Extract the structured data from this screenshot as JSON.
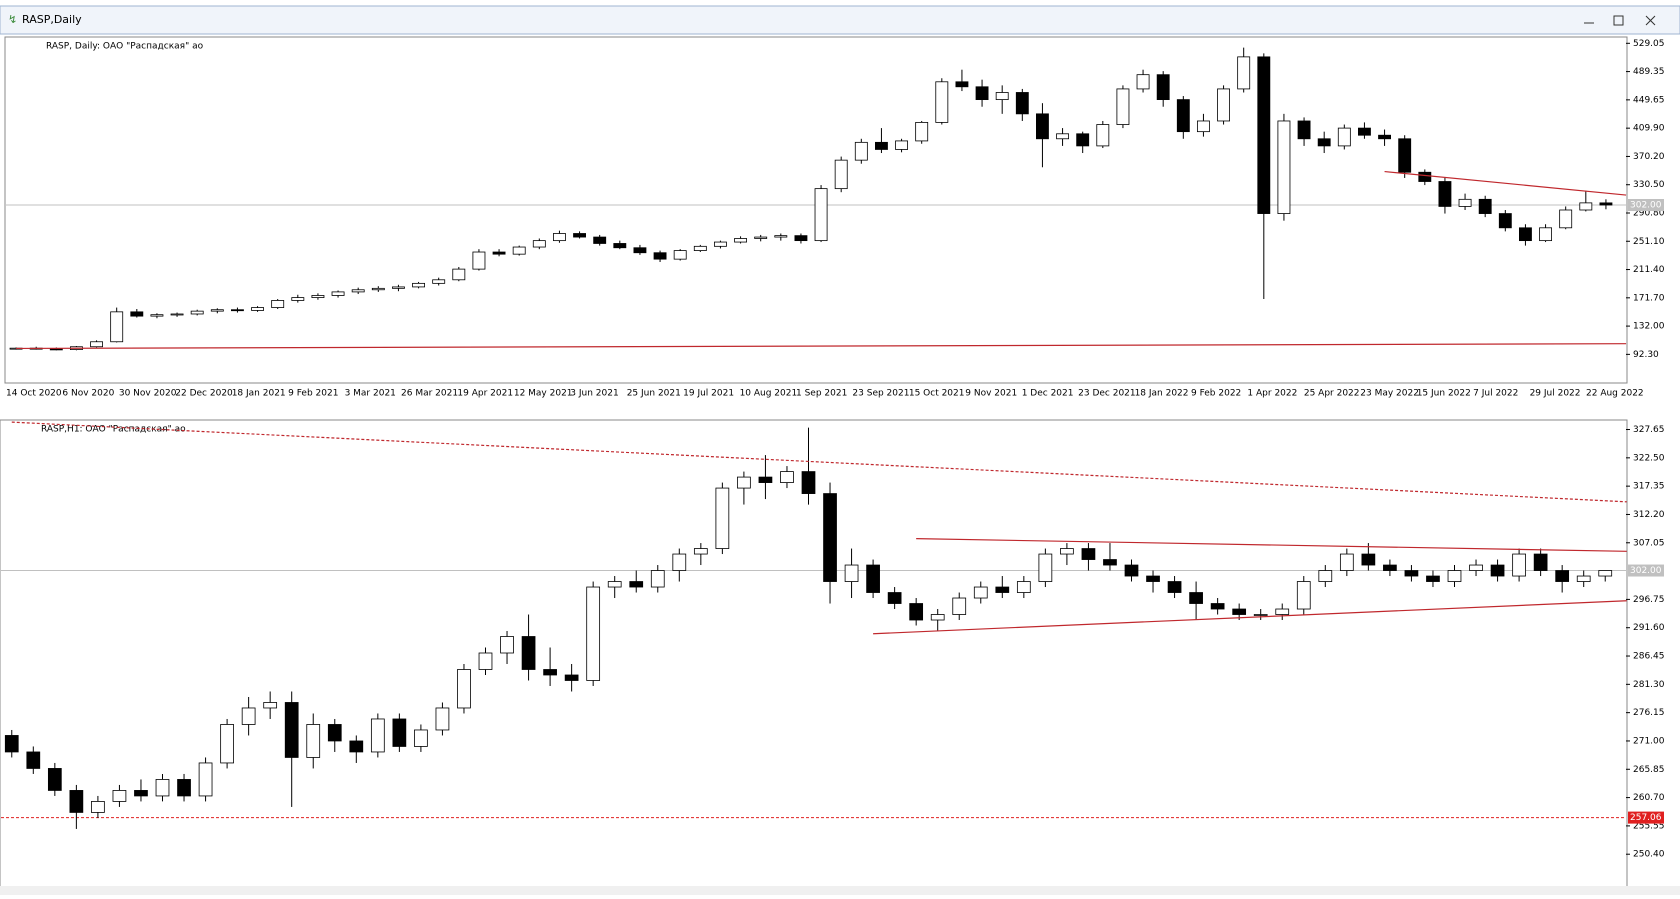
{
  "window": {
    "title": "RASP,Daily"
  },
  "chart_data": [
    {
      "type": "candlestick",
      "title": "RASP, Daily:  ОАО \"Распадская\" ао",
      "ylim": [
        53.5,
        536.5
      ],
      "yticks": [
        {
          "value": 529.05,
          "label": "529.05"
        },
        {
          "value": 489.35,
          "label": "489.35"
        },
        {
          "value": 449.65,
          "label": "449.65"
        },
        {
          "value": 409.9,
          "label": "409.90"
        },
        {
          "value": 370.2,
          "label": "370.20"
        },
        {
          "value": 330.5,
          "label": "330.50"
        },
        {
          "value": 290.8,
          "label": "290.80"
        },
        {
          "value": 251.1,
          "label": "251.10"
        },
        {
          "value": 211.4,
          "label": "211.40"
        },
        {
          "value": 171.7,
          "label": "171.70"
        },
        {
          "value": 132,
          "label": "132.00"
        },
        {
          "value": 92.3,
          "label": "92.30"
        }
      ],
      "xlabels": [
        "14 Oct 2020",
        "6 Nov 2020",
        "30 Nov 2020",
        "22 Dec 2020",
        "18 Jan 2021",
        "9 Feb 2021",
        "3 Mar 2021",
        "26 Mar 2021",
        "19 Apr 2021",
        "12 May 2021",
        "3 Jun 2021",
        "25 Jun 2021",
        "19 Jul 2021",
        "10 Aug 2021",
        "1 Sep 2021",
        "23 Sep 2021",
        "15 Oct 2021",
        "9 Nov 2021",
        "1 Dec 2021",
        "23 Dec 2021",
        "18 Jan 2022",
        "9 Feb 2022",
        "1 Apr 2022",
        "25 Apr 2022",
        "23 May 2022",
        "15 Jun 2022",
        "7 Jul 2022",
        "29 Jul 2022",
        "22 Aug 2022"
      ],
      "candles": [
        [
          100,
          102,
          99,
          101
        ],
        [
          101,
          103,
          99,
          100
        ],
        [
          100,
          102,
          98,
          99
        ],
        [
          99,
          104,
          98,
          103
        ],
        [
          103,
          112,
          102,
          110
        ],
        [
          110,
          158,
          109,
          152
        ],
        [
          152,
          156,
          144,
          146
        ],
        [
          146,
          150,
          143,
          148
        ],
        [
          148,
          151,
          145,
          149
        ],
        [
          149,
          155,
          147,
          153
        ],
        [
          153,
          157,
          150,
          155
        ],
        [
          155,
          158,
          151,
          154
        ],
        [
          154,
          160,
          152,
          158
        ],
        [
          158,
          170,
          156,
          168
        ],
        [
          168,
          176,
          165,
          172
        ],
        [
          172,
          178,
          169,
          175
        ],
        [
          175,
          182,
          172,
          180
        ],
        [
          180,
          186,
          177,
          183
        ],
        [
          183,
          188,
          180,
          185
        ],
        [
          185,
          190,
          181,
          187
        ],
        [
          187,
          194,
          185,
          192
        ],
        [
          192,
          200,
          189,
          197
        ],
        [
          197,
          215,
          195,
          212
        ],
        [
          212,
          240,
          210,
          236
        ],
        [
          236,
          240,
          230,
          233
        ],
        [
          233,
          245,
          231,
          243
        ],
        [
          243,
          255,
          240,
          252
        ],
        [
          252,
          266,
          249,
          262
        ],
        [
          262,
          265,
          255,
          257
        ],
        [
          257,
          260,
          245,
          248
        ],
        [
          248,
          252,
          240,
          242
        ],
        [
          242,
          246,
          232,
          235
        ],
        [
          235,
          238,
          222,
          226
        ],
        [
          226,
          240,
          224,
          238
        ],
        [
          238,
          246,
          236,
          244
        ],
        [
          244,
          252,
          241,
          250
        ],
        [
          250,
          258,
          248,
          255
        ],
        [
          255,
          260,
          251,
          257
        ],
        [
          257,
          262,
          252,
          259
        ],
        [
          259,
          262,
          248,
          252
        ],
        [
          252,
          330,
          250,
          325
        ],
        [
          325,
          370,
          320,
          365
        ],
        [
          365,
          395,
          360,
          390
        ],
        [
          390,
          410,
          375,
          380
        ],
        [
          380,
          395,
          376,
          392
        ],
        [
          392,
          420,
          388,
          418
        ],
        [
          418,
          480,
          415,
          475
        ],
        [
          475,
          492,
          462,
          468
        ],
        [
          468,
          478,
          440,
          450
        ],
        [
          450,
          470,
          430,
          460
        ],
        [
          460,
          465,
          420,
          430
        ],
        [
          430,
          445,
          355,
          395
        ],
        [
          395,
          410,
          385,
          402
        ],
        [
          402,
          405,
          375,
          385
        ],
        [
          385,
          420,
          382,
          415
        ],
        [
          415,
          470,
          410,
          465
        ],
        [
          465,
          492,
          460,
          485
        ],
        [
          485,
          490,
          440,
          450
        ],
        [
          450,
          455,
          395,
          405
        ],
        [
          405,
          430,
          398,
          420
        ],
        [
          420,
          470,
          415,
          465
        ],
        [
          465,
          523,
          460,
          510
        ],
        [
          510,
          515,
          170,
          290
        ],
        [
          290,
          430,
          280,
          420
        ],
        [
          420,
          425,
          385,
          395
        ],
        [
          395,
          405,
          375,
          385
        ],
        [
          385,
          415,
          380,
          410
        ],
        [
          410,
          418,
          395,
          400
        ],
        [
          400,
          408,
          385,
          395
        ],
        [
          395,
          400,
          340,
          348
        ],
        [
          348,
          352,
          330,
          335
        ],
        [
          335,
          340,
          290,
          300
        ],
        [
          300,
          318,
          295,
          310
        ],
        [
          310,
          315,
          285,
          290
        ],
        [
          290,
          295,
          265,
          270
        ],
        [
          270,
          275,
          245,
          252
        ],
        [
          252,
          275,
          250,
          270
        ],
        [
          270,
          300,
          268,
          295
        ],
        [
          295,
          322,
          293,
          305
        ],
        [
          305,
          310,
          296,
          302
        ]
      ],
      "levels": [
        {
          "value": 302,
          "label": "302.00",
          "color": "#c0c0c0",
          "dashed": false
        }
      ],
      "trendlines": [
        {
          "from": [
            0,
            100.6
          ],
          "to": [
            80,
            107.3
          ],
          "color": "#c0282d",
          "dashed": false
        },
        {
          "from": [
            68,
            349
          ],
          "to": [
            80,
            316
          ],
          "color": "#c0282d",
          "dashed": false
        }
      ]
    },
    {
      "type": "candlestick",
      "title": "RASP,H1:  ОАО \"Распадская\" ао",
      "ylim": [
        244.8,
        329.2
      ],
      "yticks": [
        {
          "value": 327.65,
          "label": "327.65"
        },
        {
          "value": 322.5,
          "label": "322.50"
        },
        {
          "value": 317.35,
          "label": "317.35"
        },
        {
          "value": 312.2,
          "label": "312.20"
        },
        {
          "value": 307.05,
          "label": "307.05"
        },
        {
          "value": 296.75,
          "label": "296.75"
        },
        {
          "value": 291.6,
          "label": "291.60"
        },
        {
          "value": 286.45,
          "label": "286.45"
        },
        {
          "value": 281.3,
          "label": "281.30"
        },
        {
          "value": 276.15,
          "label": "276.15"
        },
        {
          "value": 271,
          "label": "271.00"
        },
        {
          "value": 265.85,
          "label": "265.85"
        },
        {
          "value": 260.7,
          "label": "260.70"
        },
        {
          "value": 255.55,
          "label": "255.55"
        },
        {
          "value": 250.4,
          "label": "250.40"
        }
      ],
      "candles": [
        [
          272,
          273,
          268,
          269
        ],
        [
          269,
          270,
          265,
          266
        ],
        [
          266,
          267,
          261,
          262
        ],
        [
          262,
          263,
          255,
          258
        ],
        [
          258,
          261,
          257,
          260
        ],
        [
          260,
          263,
          259,
          262
        ],
        [
          262,
          264,
          260,
          261
        ],
        [
          261,
          265,
          260,
          264
        ],
        [
          264,
          265,
          260,
          261
        ],
        [
          261,
          268,
          260,
          267
        ],
        [
          267,
          275,
          266,
          274
        ],
        [
          274,
          279,
          272,
          277
        ],
        [
          277,
          280,
          275,
          278
        ],
        [
          278,
          280,
          259,
          268
        ],
        [
          268,
          276,
          266,
          274
        ],
        [
          274,
          275,
          269,
          271
        ],
        [
          271,
          272,
          267,
          269
        ],
        [
          269,
          276,
          268,
          275
        ],
        [
          275,
          276,
          269,
          270
        ],
        [
          270,
          274,
          269,
          273
        ],
        [
          273,
          278,
          272,
          277
        ],
        [
          277,
          285,
          276,
          284
        ],
        [
          284,
          288,
          283,
          287
        ],
        [
          287,
          291,
          285,
          290
        ],
        [
          290,
          294,
          282,
          284
        ],
        [
          284,
          288,
          281,
          283
        ],
        [
          283,
          285,
          280,
          282
        ],
        [
          282,
          300,
          281,
          299
        ],
        [
          299,
          301,
          297,
          300
        ],
        [
          300,
          302,
          298,
          299
        ],
        [
          299,
          303,
          298,
          302
        ],
        [
          302,
          306,
          300,
          305
        ],
        [
          305,
          307,
          303,
          306
        ],
        [
          306,
          318,
          305,
          317
        ],
        [
          317,
          320,
          314,
          319
        ],
        [
          319,
          323,
          315,
          318
        ],
        [
          318,
          321,
          317,
          320
        ],
        [
          320,
          328,
          314,
          316
        ],
        [
          316,
          318,
          296,
          300
        ],
        [
          300,
          306,
          297,
          303
        ],
        [
          303,
          304,
          297,
          298
        ],
        [
          298,
          299,
          295,
          296
        ],
        [
          296,
          297,
          292,
          293
        ],
        [
          293,
          295,
          291,
          294
        ],
        [
          294,
          298,
          293,
          297
        ],
        [
          297,
          300,
          296,
          299
        ],
        [
          299,
          301,
          297,
          298
        ],
        [
          298,
          301,
          297,
          300
        ],
        [
          300,
          306,
          299,
          305
        ],
        [
          305,
          307,
          303,
          306
        ],
        [
          306,
          307,
          302,
          304
        ],
        [
          304,
          307,
          302,
          303
        ],
        [
          303,
          304,
          300,
          301
        ],
        [
          301,
          302,
          298,
          300
        ],
        [
          300,
          301,
          297,
          298
        ],
        [
          298,
          300,
          293,
          296
        ],
        [
          296,
          297,
          294,
          295
        ],
        [
          295,
          296,
          293,
          294
        ],
        [
          294,
          295,
          293,
          294
        ],
        [
          294,
          296,
          293,
          295
        ],
        [
          295,
          301,
          294,
          300
        ],
        [
          300,
          303,
          299,
          302
        ],
        [
          302,
          306,
          301,
          305
        ],
        [
          305,
          307,
          302,
          303
        ],
        [
          303,
          304,
          301,
          302
        ],
        [
          302,
          303,
          300,
          301
        ],
        [
          301,
          302,
          299,
          300
        ],
        [
          300,
          303,
          299,
          302
        ],
        [
          302,
          304,
          301,
          303
        ],
        [
          303,
          304,
          300,
          301
        ],
        [
          301,
          306,
          300,
          305
        ],
        [
          305,
          306,
          301,
          302
        ],
        [
          302,
          303,
          298,
          300
        ],
        [
          300,
          302,
          299,
          301
        ],
        [
          301,
          302,
          300,
          302
        ]
      ],
      "levels": [
        {
          "value": 302,
          "label": "302.00",
          "color": "#c0c0c0",
          "dashed": false
        },
        {
          "value": 257.06,
          "label": "257.06",
          "color": "#e02020",
          "dashed": true
        }
      ],
      "trendlines": [
        {
          "from": [
            0,
            329
          ],
          "to": [
            75,
            314.5
          ],
          "color": "#c0282d",
          "dashed": true
        },
        {
          "from": [
            42,
            307.8
          ],
          "to": [
            75,
            305.5
          ],
          "color": "#c0282d",
          "dashed": false
        },
        {
          "from": [
            40,
            290.5
          ],
          "to": [
            75,
            296.5
          ],
          "color": "#c0282d",
          "dashed": false
        }
      ]
    }
  ]
}
